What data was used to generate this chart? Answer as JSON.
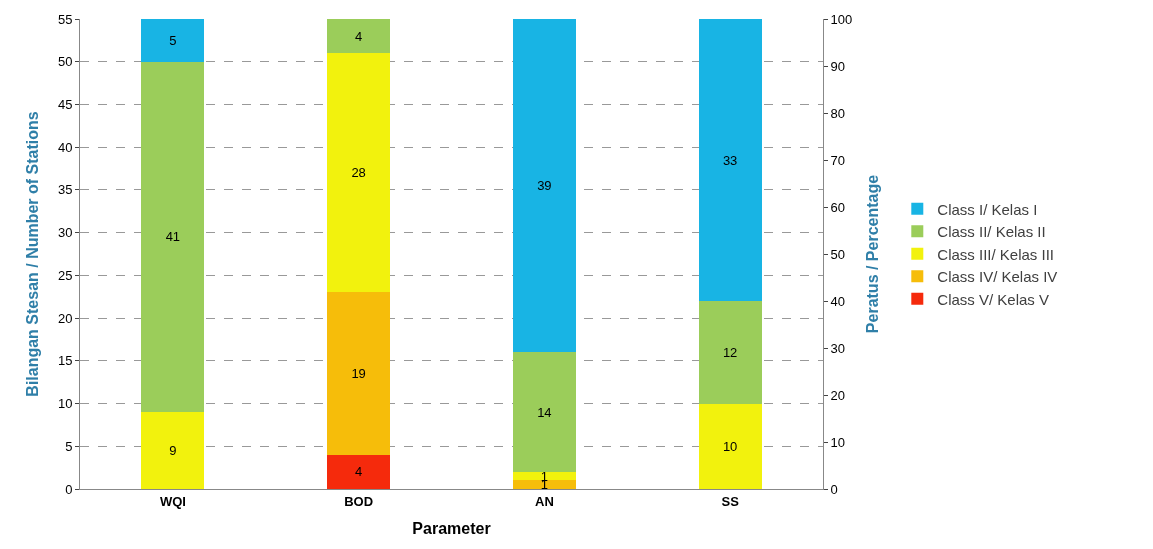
{
  "chart_data": {
    "type": "bar",
    "stacked": true,
    "xlabel": "Parameter",
    "ylabel": "Bilangan Stesan / Number of Stations",
    "y2label": "Peratus / Percentage",
    "categories": [
      "WQI",
      "BOD",
      "AN",
      "SS"
    ],
    "series": [
      {
        "name": "Class V/ Kelas V",
        "color": "#f52a0c",
        "values": [
          null,
          4,
          null,
          null
        ]
      },
      {
        "name": "Class IV/ Kelas IV",
        "color": "#f6bd0a",
        "values": [
          null,
          19,
          1,
          null
        ]
      },
      {
        "name": "Class III/ Kelas III",
        "color": "#f2f20d",
        "values": [
          9,
          28,
          1,
          10
        ]
      },
      {
        "name": "Class II/ Kelas II",
        "color": "#9bcd5a",
        "values": [
          41,
          4,
          14,
          12
        ]
      },
      {
        "name": "Class I/ Kelas I",
        "color": "#18b4e4",
        "values": [
          5,
          null,
          39,
          33
        ]
      }
    ],
    "ylim": [
      0,
      55
    ],
    "yticks": [
      0,
      5,
      10,
      15,
      20,
      25,
      30,
      35,
      40,
      45,
      50,
      55
    ],
    "y2lim": [
      0,
      100
    ],
    "y2ticks": [
      0,
      10,
      20,
      30,
      40,
      50,
      60,
      70,
      80,
      90,
      100
    ],
    "data_labels": true,
    "grid": "y",
    "legend": "right"
  }
}
